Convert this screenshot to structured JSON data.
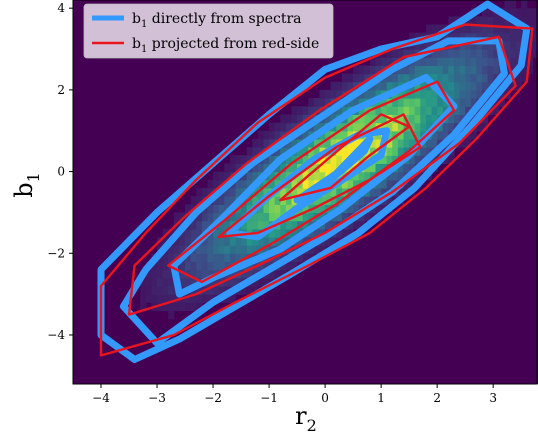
{
  "chart_data": {
    "type": "heatmap",
    "xlabel": "r",
    "xlabel_sub": "2",
    "ylabel": "b",
    "ylabel_sub": "1",
    "xlim": [
      -4.5,
      3.8
    ],
    "ylim": [
      -5.2,
      4.2
    ],
    "xticks": [
      -4,
      -3,
      -2,
      -1,
      0,
      1,
      2,
      3
    ],
    "yticks": [
      -4,
      -2,
      0,
      2,
      4
    ],
    "grid": false,
    "legend_position": "top-left",
    "colormap": [
      "#440154",
      "#3b528b",
      "#21918c",
      "#5ec962",
      "#fde725"
    ],
    "heatmap": {
      "center": [
        0.3,
        0.3
      ],
      "slope": 1.05,
      "sigma_along": 1.9,
      "sigma_across": 0.55,
      "xbin": 0.1,
      "ybin": 0.2
    },
    "series": [
      {
        "name_main": "b",
        "name_sub": "1",
        "name_rest": " directly from spectra",
        "color": "#3399ff",
        "contours": [
          [
            [
              -3.4,
              -4.6
            ],
            [
              -4.0,
              -4.0
            ],
            [
              -4.0,
              -2.4
            ],
            [
              -3.0,
              -1.0
            ],
            [
              -2.0,
              0.2
            ],
            [
              -1.0,
              1.4
            ],
            [
              0.0,
              2.5
            ],
            [
              1.0,
              3.0
            ],
            [
              2.0,
              3.3
            ],
            [
              2.9,
              4.1
            ],
            [
              3.6,
              3.5
            ],
            [
              3.5,
              2.6
            ],
            [
              2.6,
              1.1
            ],
            [
              1.6,
              -0.4
            ],
            [
              0.6,
              -1.5
            ],
            [
              -0.6,
              -2.5
            ],
            [
              -1.6,
              -3.3
            ],
            [
              -2.6,
              -4.1
            ],
            [
              -3.4,
              -4.6
            ]
          ],
          [
            [
              -3.0,
              -4.2
            ],
            [
              -3.6,
              -3.3
            ],
            [
              -3.2,
              -2.4
            ],
            [
              -2.3,
              -1.0
            ],
            [
              -1.3,
              0.2
            ],
            [
              0.0,
              1.4
            ],
            [
              1.2,
              2.5
            ],
            [
              2.2,
              3.2
            ],
            [
              3.1,
              3.2
            ],
            [
              3.2,
              2.4
            ],
            [
              2.3,
              0.9
            ],
            [
              1.2,
              -0.5
            ],
            [
              0.0,
              -1.6
            ],
            [
              -1.0,
              -2.4
            ],
            [
              -2.0,
              -3.2
            ],
            [
              -3.0,
              -4.2
            ]
          ],
          [
            [
              -2.6,
              -3.0
            ],
            [
              -2.7,
              -2.3
            ],
            [
              -1.8,
              -1.1
            ],
            [
              -0.8,
              0.3
            ],
            [
              0.5,
              1.5
            ],
            [
              1.8,
              2.3
            ],
            [
              2.3,
              1.6
            ],
            [
              1.5,
              0.4
            ],
            [
              0.3,
              -0.9
            ],
            [
              -0.8,
              -1.9
            ],
            [
              -2.0,
              -2.6
            ],
            [
              -2.6,
              -3.0
            ]
          ],
          [
            [
              -1.7,
              -1.5
            ],
            [
              -1.1,
              -0.7
            ],
            [
              -0.2,
              0.3
            ],
            [
              0.6,
              0.9
            ],
            [
              1.1,
              1.0
            ],
            [
              1.0,
              0.4
            ],
            [
              0.2,
              -0.3
            ],
            [
              -0.5,
              -0.9
            ],
            [
              -1.2,
              -1.6
            ],
            [
              -1.7,
              -1.5
            ]
          ],
          [
            [
              -0.5,
              -0.7
            ],
            [
              0.2,
              -0.05
            ],
            [
              0.8,
              0.8
            ],
            [
              0.7,
              0.5
            ],
            [
              0.1,
              -0.2
            ],
            [
              -0.5,
              -0.7
            ]
          ]
        ]
      },
      {
        "name_main": "b",
        "name_sub": "1",
        "name_rest": " projected from red-side",
        "color": "#e8141e",
        "contours": [
          [
            [
              -4.0,
              -4.5
            ],
            [
              -4.0,
              -2.8
            ],
            [
              -3.2,
              -1.5
            ],
            [
              -2.3,
              -0.2
            ],
            [
              -1.2,
              1.2
            ],
            [
              0.0,
              2.3
            ],
            [
              1.2,
              3.0
            ],
            [
              2.5,
              3.6
            ],
            [
              3.7,
              3.5
            ],
            [
              3.6,
              2.2
            ],
            [
              2.7,
              0.8
            ],
            [
              1.8,
              -0.4
            ],
            [
              0.8,
              -1.5
            ],
            [
              -0.3,
              -2.3
            ],
            [
              -1.6,
              -3.2
            ],
            [
              -2.7,
              -4.0
            ],
            [
              -4.0,
              -4.5
            ]
          ],
          [
            [
              -3.5,
              -3.5
            ],
            [
              -3.4,
              -2.3
            ],
            [
              -2.5,
              -1.1
            ],
            [
              -1.4,
              0.2
            ],
            [
              -0.1,
              1.5
            ],
            [
              1.4,
              2.8
            ],
            [
              3.1,
              3.3
            ],
            [
              3.4,
              2.1
            ],
            [
              2.4,
              0.7
            ],
            [
              1.2,
              -0.5
            ],
            [
              0.0,
              -1.5
            ],
            [
              -1.2,
              -2.3
            ],
            [
              -2.3,
              -3.0
            ],
            [
              -3.5,
              -3.5
            ]
          ],
          [
            [
              -2.8,
              -2.3
            ],
            [
              -1.8,
              -1.2
            ],
            [
              -0.6,
              0.2
            ],
            [
              0.8,
              1.5
            ],
            [
              2.0,
              2.2
            ],
            [
              2.3,
              1.5
            ],
            [
              1.5,
              0.5
            ],
            [
              0.2,
              -0.8
            ],
            [
              -1.0,
              -1.8
            ],
            [
              -2.2,
              -2.7
            ],
            [
              -2.8,
              -2.3
            ]
          ],
          [
            [
              -1.9,
              -1.6
            ],
            [
              -1.0,
              -0.6
            ],
            [
              0.2,
              0.6
            ],
            [
              1.4,
              1.4
            ],
            [
              1.7,
              0.6
            ],
            [
              0.8,
              -0.2
            ],
            [
              -0.2,
              -0.9
            ],
            [
              -1.2,
              -1.5
            ],
            [
              -1.9,
              -1.6
            ]
          ],
          [
            [
              -0.8,
              -0.7
            ],
            [
              -0.3,
              -0.1
            ],
            [
              0.3,
              0.6
            ],
            [
              1.0,
              1.4
            ],
            [
              1.5,
              1.1
            ],
            [
              0.8,
              0.4
            ],
            [
              0.1,
              -0.4
            ],
            [
              -0.8,
              -0.7
            ]
          ]
        ]
      }
    ]
  }
}
